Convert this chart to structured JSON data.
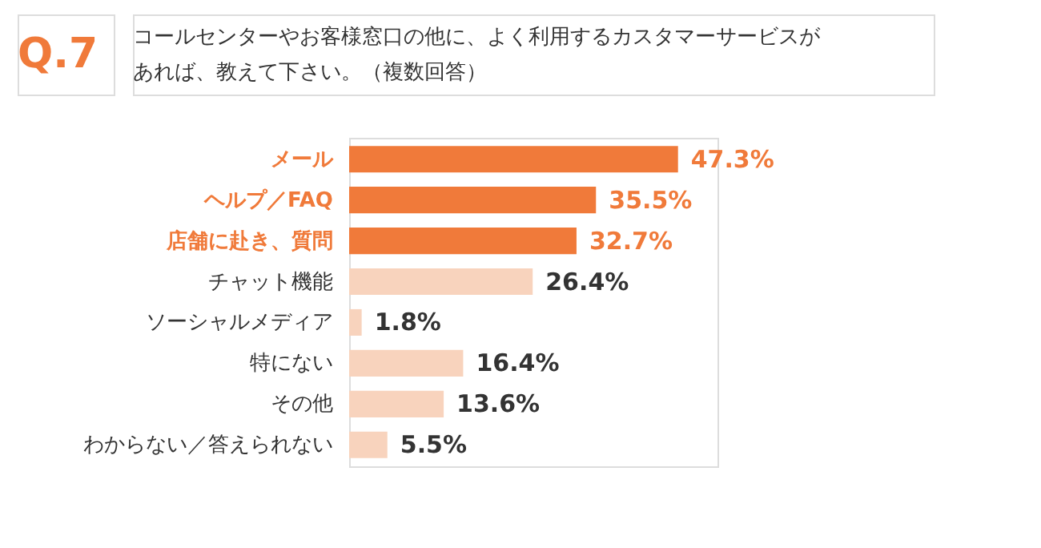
{
  "chart_data": {
    "type": "bar",
    "orientation": "horizontal",
    "title": "Q.7",
    "subtitle": [
      "コールセンターやお客様窓口の他に、よく利用するカスタマーサービスが",
      "あれば、教えて下さい。（複数回答）"
    ],
    "categories": [
      "メール",
      "ヘルプ／FAQ",
      "店舗に赴き、質問",
      "チャット機能",
      "ソーシャルメディア",
      "特にない",
      "その他",
      "わからない／答えられない"
    ],
    "values": [
      47.3,
      35.5,
      32.7,
      26.4,
      1.8,
      16.4,
      13.6,
      5.5
    ],
    "value_labels": [
      "47.3%",
      "35.5%",
      "32.7%",
      "26.4%",
      "1.8%",
      "16.4%",
      "13.6%",
      "5.5%"
    ],
    "colors": [
      "#f07a3a",
      "#f07a3a",
      "#f07a3a",
      "#f8d3bd",
      "#f8d3bd",
      "#f8d3bd",
      "#f8d3bd",
      "#f8d3bd"
    ]
  }
}
